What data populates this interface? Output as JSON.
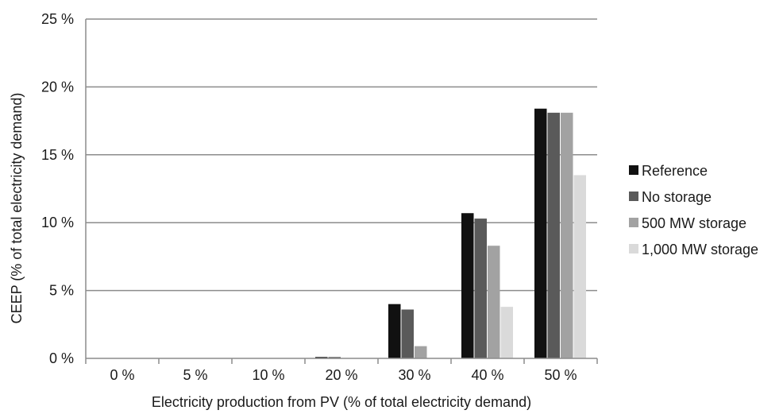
{
  "chart_data": {
    "type": "bar",
    "title": "",
    "xlabel": "Electricity production from PV (% of total electricity demand)",
    "ylabel": "CEEP (% of total electricity demand)",
    "categories": [
      "0 %",
      "5 %",
      "10 %",
      "20 %",
      "30 %",
      "40 %",
      "50 %"
    ],
    "ylim": [
      0,
      25
    ],
    "yticks": [
      0,
      5,
      10,
      15,
      20,
      25
    ],
    "ytick_labels": [
      "0 %",
      "5 %",
      "10 %",
      "15 %",
      "20 %",
      "25 %"
    ],
    "grid": true,
    "legend_position": "right",
    "series": [
      {
        "name": "Reference",
        "color": "#111111",
        "values": [
          0,
          0,
          0,
          0.1,
          4.0,
          10.7,
          18.4
        ]
      },
      {
        "name": "No storage",
        "color": "#5a5a5a",
        "values": [
          0,
          0,
          0,
          0.1,
          3.6,
          10.3,
          18.1
        ]
      },
      {
        "name": "500 MW storage",
        "color": "#a2a2a2",
        "values": [
          0,
          0,
          0,
          0,
          0.9,
          8.3,
          18.1
        ]
      },
      {
        "name": "1,000 MW storage",
        "color": "#dadada",
        "values": [
          0,
          0,
          0,
          0,
          0,
          3.8,
          13.5
        ]
      }
    ]
  }
}
